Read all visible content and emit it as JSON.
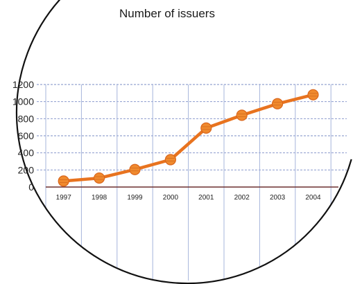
{
  "chart_data": {
    "type": "line",
    "title": "Number of issuers",
    "xlabel": "",
    "ylabel": "",
    "categories": [
      "1997",
      "1998",
      "1999",
      "2000",
      "2001",
      "2002",
      "2003",
      "2004"
    ],
    "series": [
      {
        "values": [
          70,
          105,
          205,
          320,
          690,
          840,
          975,
          1080
        ]
      }
    ],
    "yticks": [
      "0",
      "200",
      "400",
      "600",
      "800",
      "1000",
      "1200"
    ],
    "ylim": [
      0,
      1200
    ],
    "grid": true,
    "legend": "none",
    "colors": {
      "line": "#e8731f",
      "marker": "#f08a2e",
      "grid": "#7a8cc6",
      "baseline": "#6b2f2f",
      "circle": "#111111"
    }
  }
}
